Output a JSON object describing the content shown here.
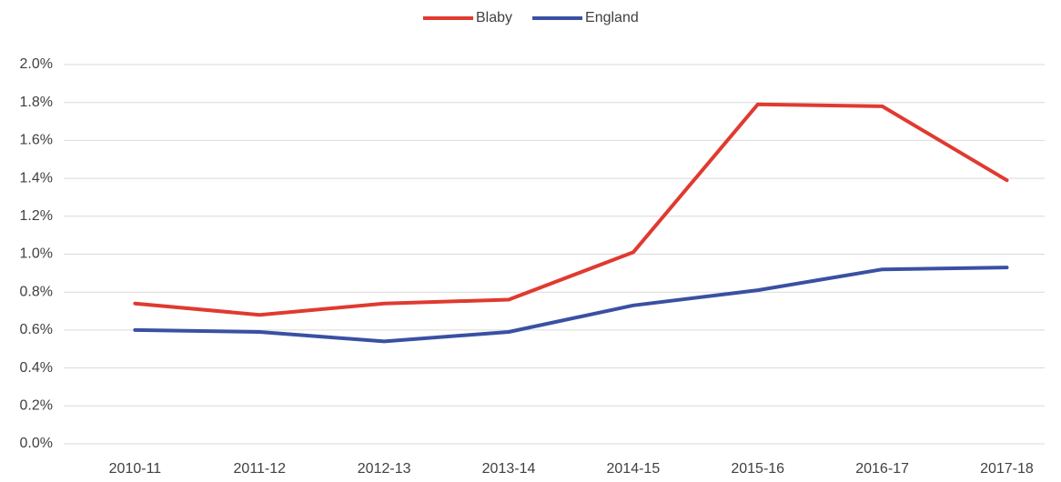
{
  "chart_data": {
    "type": "line",
    "categories": [
      "2010-11",
      "2011-12",
      "2012-13",
      "2013-14",
      "2014-15",
      "2015-16",
      "2016-17",
      "2017-18"
    ],
    "series": [
      {
        "name": "Blaby",
        "color": "#e03a30",
        "values": [
          0.74,
          0.68,
          0.74,
          0.76,
          1.01,
          1.79,
          1.78,
          1.39
        ]
      },
      {
        "name": "England",
        "color": "#3a50a2",
        "values": [
          0.6,
          0.59,
          0.54,
          0.59,
          0.73,
          0.81,
          0.92,
          0.93
        ]
      }
    ],
    "ylim": [
      0,
      2.0
    ],
    "yticks": [
      {
        "value": 0,
        "label": "0.0%"
      },
      {
        "value": 0.2,
        "label": "0.2%"
      },
      {
        "value": 0.4,
        "label": "0.4%"
      },
      {
        "value": 0.6,
        "label": "0.6%"
      },
      {
        "value": 0.8,
        "label": "0.8%"
      },
      {
        "value": 1.0,
        "label": "1.0%"
      },
      {
        "value": 1.2,
        "label": "1.2%"
      },
      {
        "value": 1.4,
        "label": "1.4%"
      },
      {
        "value": 1.6,
        "label": "1.6%"
      },
      {
        "value": 1.8,
        "label": "1.8%"
      },
      {
        "value": 2.0,
        "label": "2.0%"
      }
    ],
    "grid": true,
    "legend": "top"
  }
}
